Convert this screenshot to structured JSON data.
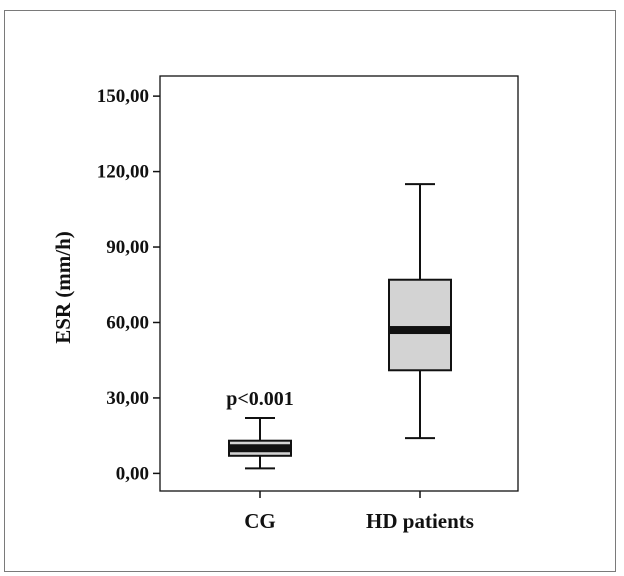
{
  "chart_data": {
    "type": "box",
    "title": "",
    "xlabel": "",
    "ylabel": "ESR (mm/h)",
    "ylim": [
      -7,
      158
    ],
    "yticks": [
      0,
      30,
      60,
      90,
      120,
      150
    ],
    "ytick_labels": [
      "0,00",
      "30,00",
      "60,00",
      "90,00",
      "120,00",
      "150,00"
    ],
    "categories": [
      "CG",
      "HD patients"
    ],
    "boxes": [
      {
        "category": "CG",
        "whisker_low": 2,
        "q1": 7,
        "median": 10,
        "q3": 13,
        "whisker_high": 22
      },
      {
        "category": "HD patients",
        "whisker_low": 14,
        "q1": 41,
        "median": 57,
        "q3": 77,
        "whisker_high": 115
      }
    ],
    "annotations": [
      {
        "text": "p<0.001",
        "category": "CG",
        "y": 30
      }
    ],
    "box_fill": "#d3d3d3",
    "median_color": "#111111",
    "line_color": "#111111",
    "grid": false
  }
}
